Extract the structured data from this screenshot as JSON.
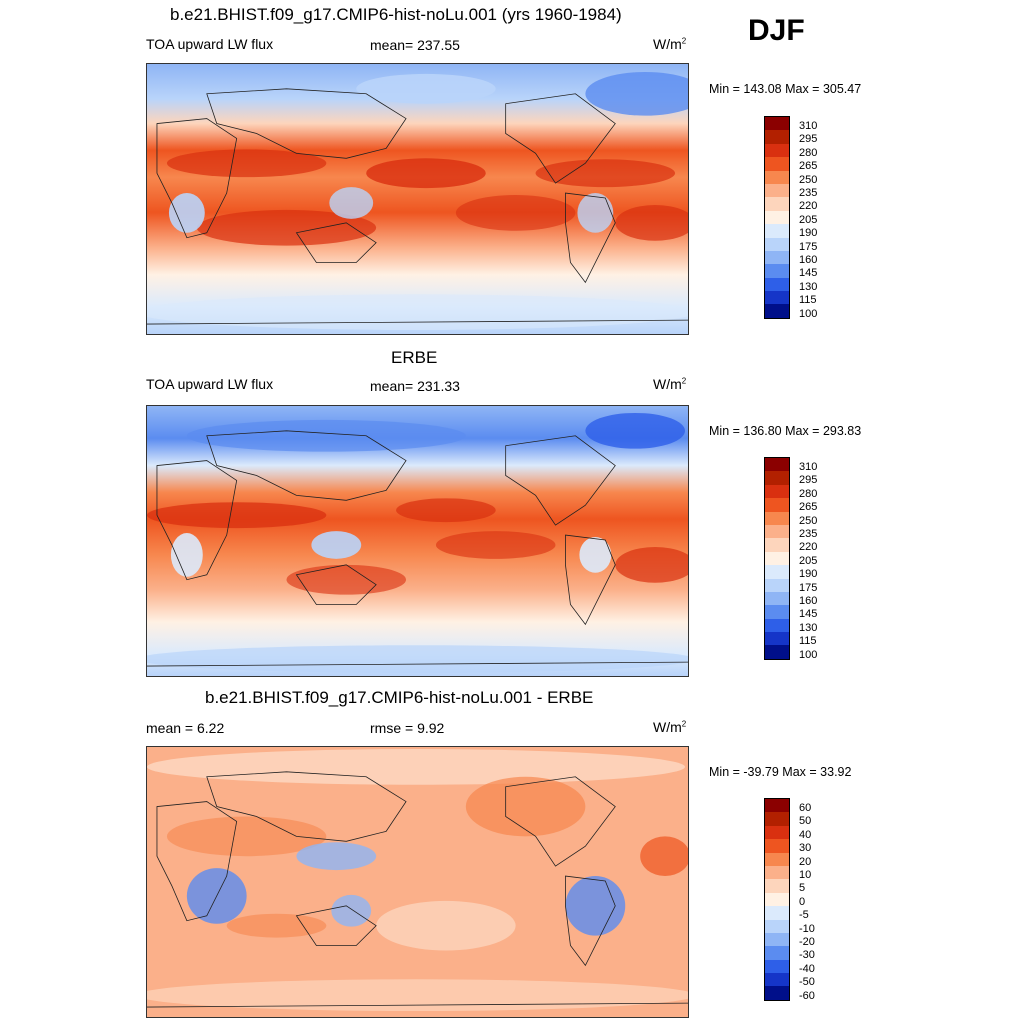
{
  "season": "DJF",
  "panels": [
    {
      "title": "b.e21.BHIST.f09_g17.CMIP6-hist-noLu.001 (yrs 1960-1984)",
      "left_label": "TOA upward LW flux",
      "center_label": "mean= 237.55",
      "units": "W/m",
      "units_sup": "2",
      "minmax": "Min = 143.08 Max = 305.47"
    },
    {
      "title": "ERBE",
      "left_label": "TOA upward LW flux",
      "center_label": "mean= 231.33",
      "units": "W/m",
      "units_sup": "2",
      "minmax": "Min = 136.80 Max = 293.83"
    },
    {
      "title": "b.e21.BHIST.f09_g17.CMIP6-hist-noLu.001 - ERBE",
      "left_label": "mean =   6.22",
      "center_label": "rmse =   9.92",
      "units": "W/m",
      "units_sup": "2",
      "minmax": "Min = -39.79 Max =  33.92"
    }
  ],
  "colorbar_abs": {
    "labels": [
      "310",
      "295",
      "280",
      "265",
      "250",
      "235",
      "220",
      "205",
      "190",
      "175",
      "160",
      "145",
      "130",
      "115",
      "100"
    ],
    "colors": [
      "#8b0000",
      "#b22000",
      "#d93010",
      "#ee5520",
      "#f7874e",
      "#fbb08a",
      "#fdd5bc",
      "#fff1e4",
      "#dbeafc",
      "#b9d4fa",
      "#8fb5f5",
      "#5b8cf0",
      "#2e5fe8",
      "#1535c8",
      "#000f8a"
    ]
  },
  "colorbar_diff": {
    "labels": [
      "60",
      "50",
      "40",
      "30",
      "20",
      "10",
      "5",
      "0",
      "-5",
      "-10",
      "-20",
      "-30",
      "-40",
      "-50",
      "-60"
    ],
    "colors": [
      "#8b0000",
      "#b22000",
      "#d93010",
      "#ee5520",
      "#f7874e",
      "#fbb08a",
      "#fdd5bc",
      "#fff1e4",
      "#dbeafc",
      "#b9d4fa",
      "#8fb5f5",
      "#5b8cf0",
      "#2e5fe8",
      "#1535c8",
      "#000f8a"
    ]
  }
}
